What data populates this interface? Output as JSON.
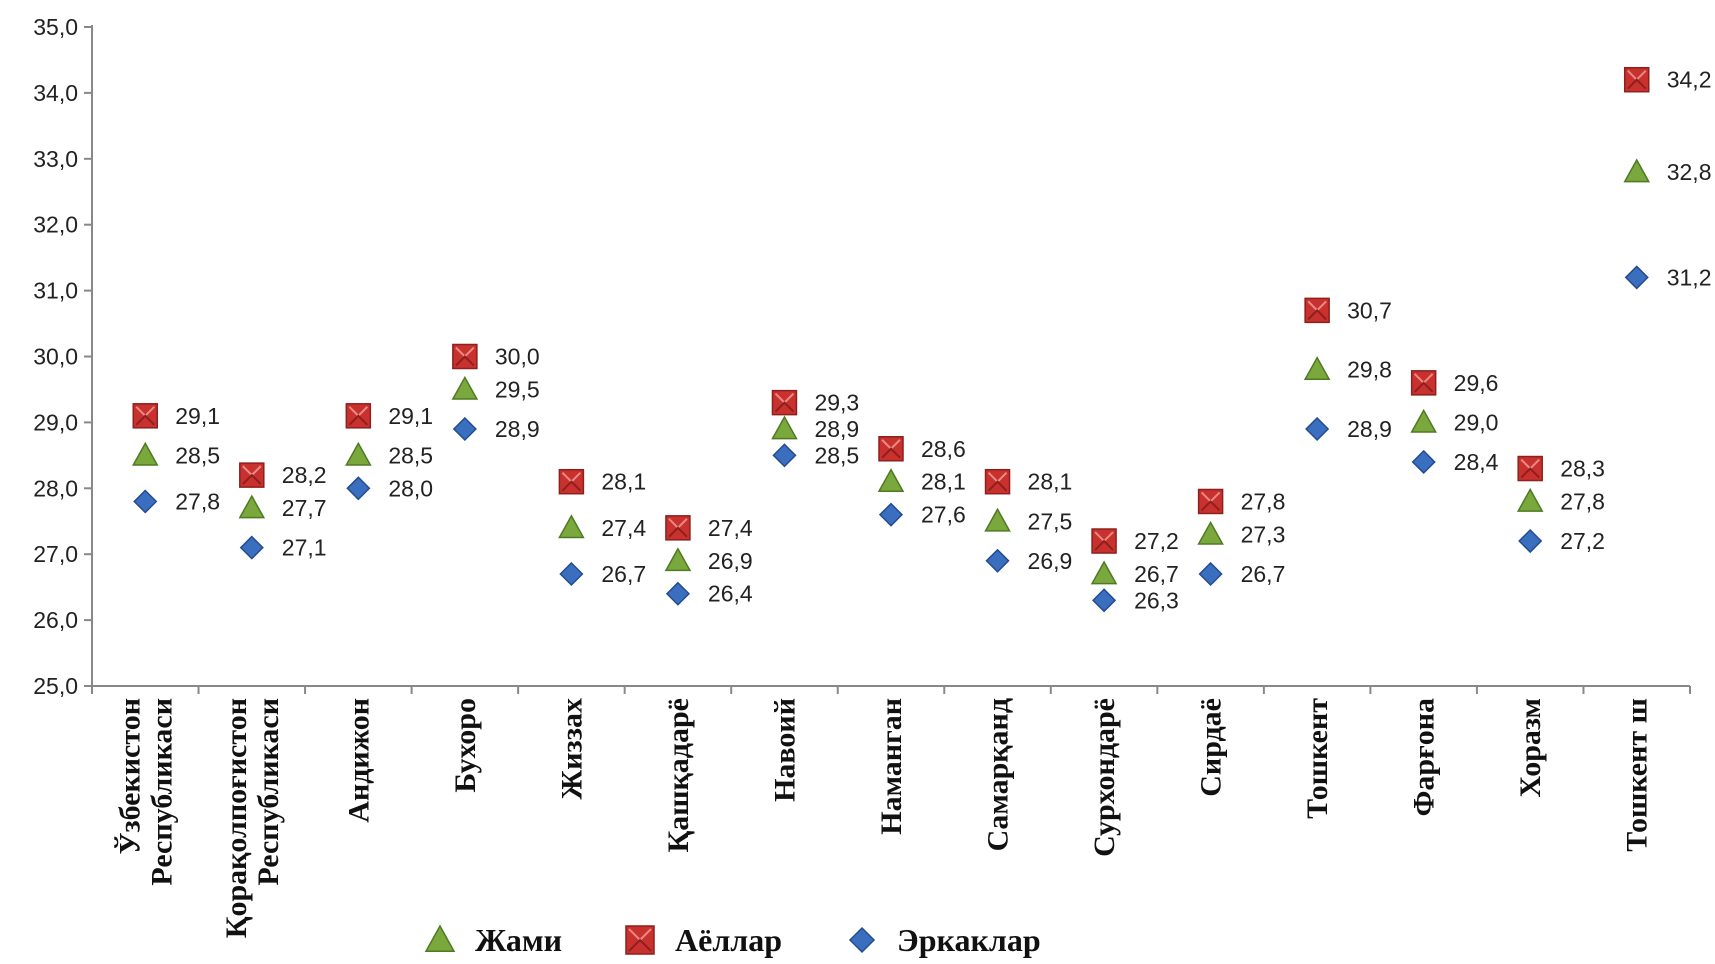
{
  "chart_data": {
    "type": "scatter",
    "ylim": [
      25.0,
      35.0
    ],
    "yticks": [
      "25,0",
      "26,0",
      "27,0",
      "28,0",
      "29,0",
      "30,0",
      "31,0",
      "32,0",
      "33,0",
      "34,0",
      "35,0"
    ],
    "categories": [
      [
        "Ўзбекистон",
        "Республикаси"
      ],
      [
        "Қорақолпоғистон",
        "Республикаси"
      ],
      [
        "Андижон"
      ],
      [
        "Бухоро"
      ],
      [
        "Жиззах"
      ],
      [
        "Қашқадарё"
      ],
      [
        "Навоий"
      ],
      [
        "Наманган"
      ],
      [
        "Самарқанд"
      ],
      [
        "Сурхондарё"
      ],
      [
        "Сирдаё"
      ],
      [
        "Тошкент"
      ],
      [
        "Фарғона"
      ],
      [
        "Хоразм"
      ],
      [
        "Тошкент ш"
      ]
    ],
    "series": [
      {
        "name": "Жами",
        "marker": "triangle",
        "color": "#7aa83c",
        "values": [
          28.5,
          27.7,
          28.5,
          29.5,
          27.4,
          26.9,
          28.9,
          28.1,
          27.5,
          26.7,
          27.3,
          29.8,
          29.0,
          27.8,
          32.8
        ],
        "labels": [
          "28,5",
          "27,7",
          "28,5",
          "29,5",
          "27,4",
          "26,9",
          "28,9",
          "28,1",
          "27,5",
          "26,7",
          "27,3",
          "29,8",
          "29,0",
          "27,8",
          "32,8"
        ]
      },
      {
        "name": "Аёллар",
        "marker": "square",
        "color": "#c8312e",
        "values": [
          29.1,
          28.2,
          29.1,
          30.0,
          28.1,
          27.4,
          29.3,
          28.6,
          28.1,
          27.2,
          27.8,
          30.7,
          29.6,
          28.3,
          34.2
        ],
        "labels": [
          "29,1",
          "28,2",
          "29,1",
          "30,0",
          "28,1",
          "27,4",
          "29,3",
          "28,6",
          "28,1",
          "27,2",
          "27,8",
          "30,7",
          "29,6",
          "28,3",
          "34,2"
        ]
      },
      {
        "name": "Эркаклар",
        "marker": "diamond",
        "color": "#3a6fc0",
        "values": [
          27.8,
          27.1,
          28.0,
          28.9,
          26.7,
          26.4,
          28.5,
          27.6,
          26.9,
          26.3,
          26.7,
          28.9,
          28.4,
          27.2,
          31.2
        ],
        "labels": [
          "27,8",
          "27,1",
          "28,0",
          "28,9",
          "26,7",
          "26,4",
          "28,5",
          "27,6",
          "26,9",
          "26,3",
          "26,7",
          "28,9",
          "28,4",
          "27,2",
          "31,2"
        ]
      }
    ],
    "legend": {
      "placement": "bottom",
      "order": [
        "Жами",
        "Аёллар",
        "Эркаклар"
      ]
    }
  }
}
